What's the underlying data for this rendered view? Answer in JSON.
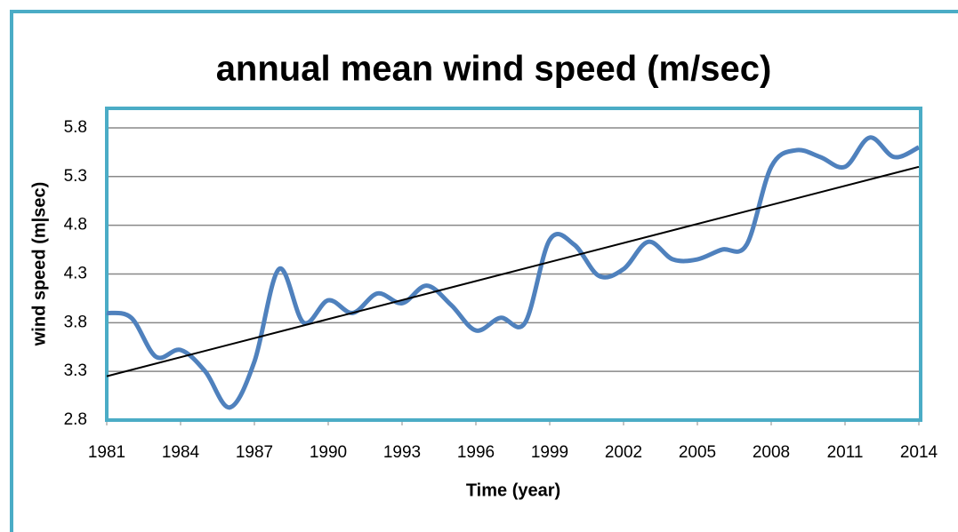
{
  "chart_data": {
    "type": "line",
    "title": "annual mean wind speed (m/sec)",
    "x_label": "Time (year)",
    "y_label": "wind speed (m|sec)",
    "x": [
      1981,
      1982,
      1983,
      1984,
      1985,
      1986,
      1987,
      1988,
      1989,
      1990,
      1991,
      1992,
      1993,
      1994,
      1995,
      1996,
      1997,
      1998,
      1999,
      2000,
      2001,
      2002,
      2003,
      2004,
      2005,
      2006,
      2007,
      2008,
      2009,
      2010,
      2011,
      2012,
      2013,
      2014
    ],
    "series": [
      {
        "color": "#4f81bd",
        "values": [
          3.9,
          3.85,
          3.45,
          3.52,
          3.3,
          2.93,
          3.4,
          4.35,
          3.8,
          4.03,
          3.9,
          4.1,
          4.0,
          4.18,
          3.98,
          3.72,
          3.85,
          3.8,
          4.65,
          4.6,
          4.28,
          4.35,
          4.63,
          4.45,
          4.45,
          4.55,
          4.6,
          5.4,
          5.57,
          5.5,
          5.4,
          5.7,
          5.5,
          5.6
        ]
      }
    ],
    "trendline": {
      "color": "#000000",
      "x": [
        1981,
        2014
      ],
      "values": [
        3.25,
        5.4
      ]
    },
    "xlim": [
      1981,
      2014
    ],
    "xticks": [
      1981,
      1984,
      1987,
      1990,
      1993,
      1996,
      1999,
      2002,
      2005,
      2008,
      2011,
      2014
    ],
    "ylim": [
      2.8,
      6.0
    ],
    "yticks": [
      2.8,
      3.3,
      3.8,
      4.3,
      4.8,
      5.3,
      5.8
    ],
    "grid": true
  }
}
